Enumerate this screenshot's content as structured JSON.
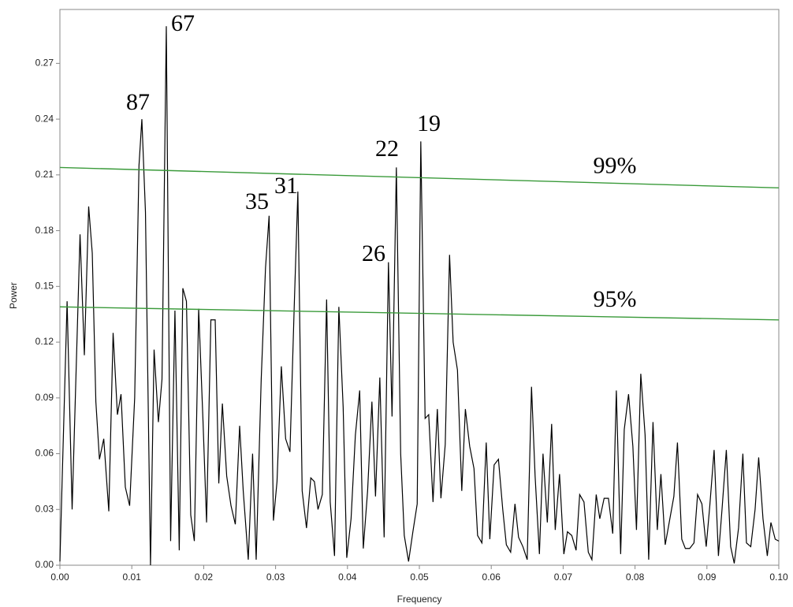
{
  "chart_data": {
    "type": "line",
    "xlabel": "Frequency",
    "ylabel": "Power",
    "xlim": [
      0,
      0.1
    ],
    "ylim": [
      0,
      0.299
    ],
    "xticks": [
      {
        "value": 0,
        "label": "0.00"
      },
      0.01,
      0.02,
      0.03,
      0.04,
      0.05,
      0.06,
      0.07,
      0.08,
      0.09,
      {
        "value": 0.1,
        "label": "0.10"
      }
    ],
    "yticks": [
      {
        "value": 0,
        "label": "0.00"
      },
      0.03,
      0.06,
      0.09,
      0.12,
      0.15,
      0.18,
      0.21,
      0.24,
      0.27
    ],
    "x": [
      0,
      0.001,
      0.0017,
      0.0028,
      0.0034,
      0.004,
      0.0045,
      0.005,
      0.0055,
      0.0061,
      0.0068,
      0.0074,
      0.008,
      0.0085,
      0.0091,
      0.0097,
      0.0104,
      0.011,
      0.0114,
      0.0119,
      0.0126,
      0.0131,
      0.0137,
      0.0142,
      0.0148,
      0.0154,
      0.016,
      0.0166,
      0.0171,
      0.0176,
      0.0182,
      0.0187,
      0.0193,
      0.0199,
      0.0204,
      0.021,
      0.0216,
      0.0221,
      0.0226,
      0.0232,
      0.0238,
      0.0244,
      0.025,
      0.0255,
      0.0262,
      0.0268,
      0.0273,
      0.028,
      0.0286,
      0.0291,
      0.0297,
      0.0302,
      0.0308,
      0.0314,
      0.032,
      0.0326,
      0.0331,
      0.0337,
      0.0343,
      0.0349,
      0.0354,
      0.0359,
      0.0365,
      0.0371,
      0.0376,
      0.0382,
      0.0388,
      0.0394,
      0.0399,
      0.0405,
      0.0411,
      0.0417,
      0.0422,
      0.0428,
      0.0434,
      0.0439,
      0.0445,
      0.0451,
      0.0457,
      0.0462,
      0.0468,
      0.0474,
      0.0479,
      0.0485,
      0.0491,
      0.0497,
      0.0502,
      0.0508,
      0.0513,
      0.0519,
      0.0525,
      0.053,
      0.0536,
      0.0542,
      0.0547,
      0.0553,
      0.0559,
      0.0564,
      0.057,
      0.0576,
      0.0581,
      0.0587,
      0.0593,
      0.0598,
      0.0604,
      0.061,
      0.0616,
      0.0621,
      0.0627,
      0.0633,
      0.0638,
      0.0644,
      0.065,
      0.0656,
      0.0661,
      0.0667,
      0.0672,
      0.0678,
      0.0684,
      0.0689,
      0.0695,
      0.0701,
      0.0706,
      0.0712,
      0.0718,
      0.0723,
      0.0729,
      0.0735,
      0.074,
      0.0746,
      0.0751,
      0.0757,
      0.0763,
      0.0769,
      0.0774,
      0.078,
      0.0785,
      0.0791,
      0.0797,
      0.0802,
      0.0808,
      0.0814,
      0.0819,
      0.0825,
      0.0831,
      0.0836,
      0.0842,
      0.0848,
      0.0854,
      0.0859,
      0.0865,
      0.087,
      0.0876,
      0.0882,
      0.0887,
      0.0893,
      0.0899,
      0.0904,
      0.091,
      0.0916,
      0.0921,
      0.0927,
      0.0933,
      0.0938,
      0.0944,
      0.095,
      0.0955,
      0.0961,
      0.0967,
      0.0972,
      0.0978,
      0.0984,
      0.0989,
      0.0995,
      0.1
    ],
    "series": [
      {
        "color": "#000000",
        "values": [
          0.002,
          0.142,
          0.03,
          0.178,
          0.113,
          0.193,
          0.168,
          0.088,
          0.057,
          0.068,
          0.029,
          0.125,
          0.081,
          0.092,
          0.042,
          0.032,
          0.09,
          0.215,
          0.24,
          0.19,
          0,
          0.116,
          0.077,
          0.1,
          0.29,
          0.013,
          0.137,
          0.008,
          0.149,
          0.142,
          0.027,
          0.013,
          0.138,
          0.078,
          0.023,
          0.132,
          0.132,
          0.044,
          0.087,
          0.048,
          0.032,
          0.022,
          0.075,
          0.04,
          0.003,
          0.06,
          0.003,
          0.1,
          0.16,
          0.188,
          0.024,
          0.045,
          0.107,
          0.068,
          0.061,
          0.14,
          0.201,
          0.04,
          0.02,
          0.047,
          0.045,
          0.03,
          0.038,
          0.143,
          0.034,
          0.005,
          0.139,
          0.085,
          0.004,
          0.025,
          0.07,
          0.094,
          0.009,
          0.04,
          0.088,
          0.037,
          0.101,
          0.015,
          0.163,
          0.08,
          0.214,
          0.06,
          0.016,
          0.002,
          0.018,
          0.033,
          0.228,
          0.079,
          0.081,
          0.034,
          0.084,
          0.036,
          0.065,
          0.167,
          0.12,
          0.105,
          0.04,
          0.084,
          0.064,
          0.052,
          0.016,
          0.012,
          0.066,
          0.014,
          0.054,
          0.057,
          0.03,
          0.011,
          0.007,
          0.033,
          0.015,
          0.01,
          0.003,
          0.096,
          0.048,
          0.006,
          0.06,
          0.023,
          0.076,
          0.019,
          0.049,
          0.006,
          0.018,
          0.016,
          0.008,
          0.038,
          0.034,
          0.007,
          0.003,
          0.038,
          0.025,
          0.036,
          0.036,
          0.017,
          0.094,
          0.006,
          0.073,
          0.092,
          0.064,
          0.019,
          0.103,
          0.07,
          0.003,
          0.077,
          0.019,
          0.049,
          0.011,
          0.024,
          0.037,
          0.066,
          0.014,
          0.009,
          0.009,
          0.012,
          0.038,
          0.033,
          0.01,
          0.032,
          0.062,
          0.005,
          0.03,
          0.062,
          0.01,
          0.001,
          0.02,
          0.06,
          0.012,
          0.01,
          0.03,
          0.058,
          0.025,
          0.005,
          0.023,
          0.014,
          0.013
        ]
      }
    ],
    "thresholds": [
      {
        "name": "99%",
        "color": "#3a9a3a",
        "values": [
          0.214,
          0.203
        ]
      },
      {
        "name": "95%",
        "color": "#3a9a3a",
        "values": [
          0.139,
          0.132
        ]
      }
    ],
    "annotations": [
      "67",
      "87",
      "35",
      "31",
      "22",
      "19",
      "26"
    ]
  }
}
